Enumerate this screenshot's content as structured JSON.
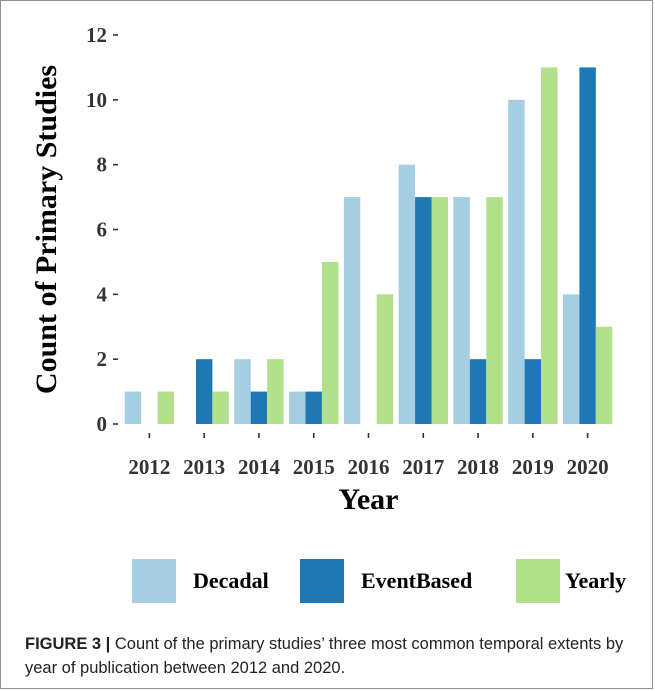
{
  "chart_data": {
    "type": "bar",
    "xlabel": "Year",
    "ylabel": "Count of Primary Studies",
    "categories": [
      "2012",
      "2013",
      "2014",
      "2015",
      "2016",
      "2017",
      "2018",
      "2019",
      "2020"
    ],
    "ylim": [
      0,
      12
    ],
    "yticks": [
      "0",
      "2",
      "4",
      "6",
      "8",
      "10",
      "12"
    ],
    "series": [
      {
        "name": "Decadal",
        "color": "#a6cee3",
        "values": [
          1,
          0,
          2,
          1,
          7,
          8,
          7,
          10,
          4
        ]
      },
      {
        "name": "EventBased",
        "color": "#1f78b4",
        "values": [
          0,
          2,
          1,
          1,
          0,
          7,
          2,
          2,
          11
        ]
      },
      {
        "name": "Yearly",
        "color": "#b2df8a",
        "values": [
          1,
          1,
          2,
          5,
          4,
          7,
          7,
          11,
          3
        ]
      }
    ],
    "grid": false,
    "legend_position": "bottom"
  },
  "caption": {
    "label": "FIGURE 3 |",
    "text": " Count of the primary studies’ three most common temporal extents by year of publication between 2012 and 2020."
  }
}
